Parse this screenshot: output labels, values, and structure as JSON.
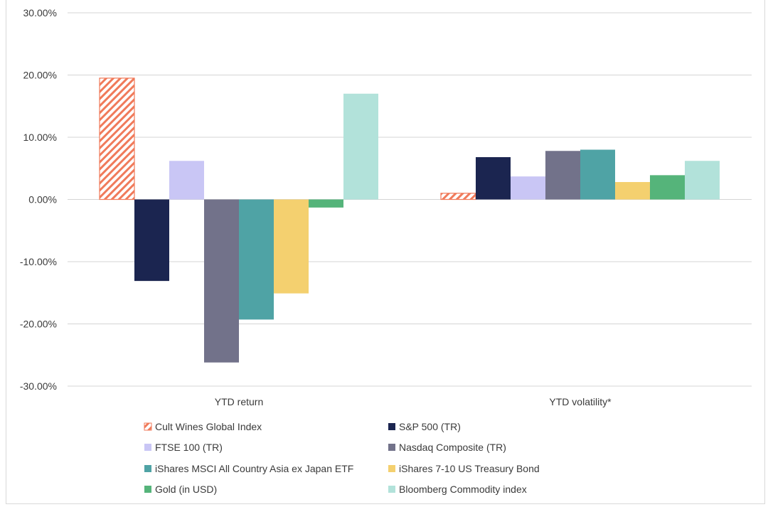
{
  "chart_data": {
    "type": "bar",
    "title": "",
    "xlabel": "",
    "ylabel": "",
    "ylim": [
      -30,
      30
    ],
    "y_ticks": [
      30,
      20,
      10,
      0,
      -10,
      -20,
      -30
    ],
    "y_tick_labels": [
      "30.00%",
      "20.00%",
      "10.00%",
      "0.00%",
      "-10.00%",
      "-20.00%",
      "-30.00%"
    ],
    "grid": true,
    "legend_position": "bottom",
    "categories": [
      "YTD return",
      "YTD volatility*"
    ],
    "series": [
      {
        "name": "Cult Wines Global Index",
        "color": "#f07a5a",
        "pattern": "hatch",
        "values": [
          19.5,
          1.0
        ]
      },
      {
        "name": "S&P 500 (TR)",
        "color": "#1b2550",
        "values": [
          -13.1,
          6.8
        ]
      },
      {
        "name": "FTSE 100 (TR)",
        "color": "#c9c6f5",
        "values": [
          6.2,
          3.7
        ]
      },
      {
        "name": "Nasdaq Composite (TR)",
        "color": "#72728a",
        "values": [
          -26.2,
          7.8
        ]
      },
      {
        "name": "iShares MSCI All Country Asia ex Japan ETF",
        "color": "#4fa3a5",
        "values": [
          -19.3,
          8.0
        ]
      },
      {
        "name": "iShares 7-10 US Treasury Bond",
        "color": "#f4d06f",
        "values": [
          -15.1,
          2.8
        ]
      },
      {
        "name": "Gold (in USD)",
        "color": "#55b47a",
        "values": [
          -1.3,
          3.9
        ]
      },
      {
        "name": "Bloomberg Commodity index",
        "color": "#b2e2da",
        "values": [
          17.0,
          6.2
        ]
      }
    ]
  }
}
